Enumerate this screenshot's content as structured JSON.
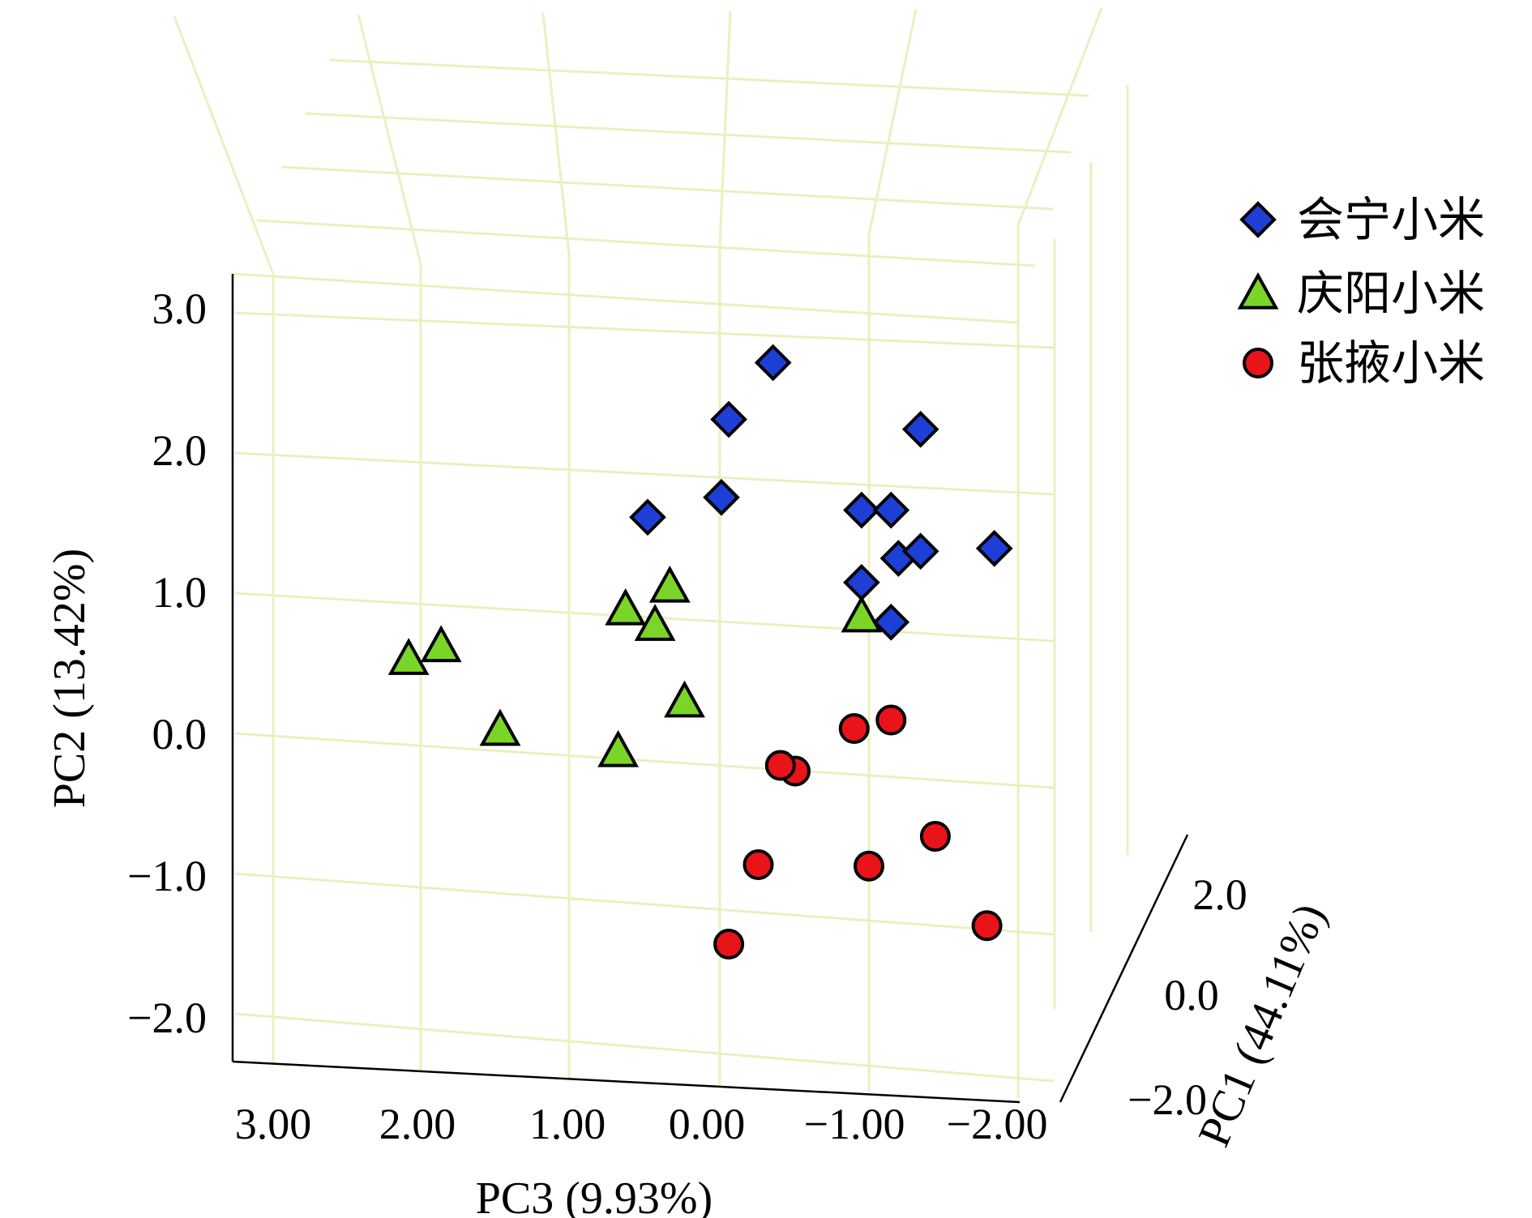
{
  "chart_data": {
    "type": "scatter",
    "projection": "3d",
    "grid": true,
    "grid_color": "#ECEFBF",
    "legend_position": "top-right",
    "axes": {
      "x": {
        "title": "PC3 (9.93%)",
        "range": [
          3.0,
          -2.0
        ],
        "ticks": [
          "3.00",
          "2.00",
          "1.00",
          "0.00",
          "−1.00",
          "−2.00"
        ]
      },
      "y": {
        "title": "PC2 (13.42%)",
        "range": [
          -2.5,
          3.3
        ],
        "ticks": [
          "3.0",
          "2.0",
          "1.0",
          "0.0",
          "−1.0",
          "−2.0"
        ]
      },
      "z": {
        "title": "PC1 (44.11%)",
        "range": [
          -2.5,
          2.5
        ],
        "ticks": [
          "2.0",
          "0.0",
          "−2.0"
        ]
      }
    },
    "series": [
      {
        "name": "会宁小米",
        "marker": "diamond",
        "color": "#1E3FD6",
        "points": [
          {
            "pc3": -0.35,
            "pc2": 2.62
          },
          {
            "pc3": -0.05,
            "pc2": 2.22
          },
          {
            "pc3": 0.0,
            "pc2": 1.67
          },
          {
            "pc3": 0.5,
            "pc2": 1.53
          },
          {
            "pc3": -1.35,
            "pc2": 2.15
          },
          {
            "pc3": -0.95,
            "pc2": 1.58
          },
          {
            "pc3": -1.15,
            "pc2": 1.58
          },
          {
            "pc3": -1.2,
            "pc2": 1.24
          },
          {
            "pc3": -1.35,
            "pc2": 1.29
          },
          {
            "pc3": -1.85,
            "pc2": 1.31
          },
          {
            "pc3": -0.95,
            "pc2": 1.07
          },
          {
            "pc3": -1.15,
            "pc2": 0.79
          }
        ]
      },
      {
        "name": "庆阳小米",
        "marker": "triangle",
        "color": "#7BD528",
        "points": [
          {
            "pc3": 0.35,
            "pc2": 1.04
          },
          {
            "pc3": 0.65,
            "pc2": 0.88
          },
          {
            "pc3": 0.45,
            "pc2": 0.77
          },
          {
            "pc3": -0.95,
            "pc2": 0.83
          },
          {
            "pc3": 1.9,
            "pc2": 0.62
          },
          {
            "pc3": 2.12,
            "pc2": 0.53
          },
          {
            "pc3": 1.5,
            "pc2": 0.03
          },
          {
            "pc3": 0.25,
            "pc2": 0.23
          },
          {
            "pc3": 0.7,
            "pc2": -0.12
          }
        ]
      },
      {
        "name": "张掖小米",
        "marker": "circle",
        "color": "#E8141A",
        "points": [
          {
            "pc3": -0.9,
            "pc2": 0.04
          },
          {
            "pc3": -1.15,
            "pc2": 0.1
          },
          {
            "pc3": -0.5,
            "pc2": -0.26
          },
          {
            "pc3": -0.4,
            "pc2": -0.22
          },
          {
            "pc3": -0.25,
            "pc2": -0.92
          },
          {
            "pc3": -1.0,
            "pc2": -0.93
          },
          {
            "pc3": -1.45,
            "pc2": -0.72
          },
          {
            "pc3": -0.05,
            "pc2": -1.48
          },
          {
            "pc3": -1.8,
            "pc2": -1.35
          }
        ]
      }
    ]
  }
}
